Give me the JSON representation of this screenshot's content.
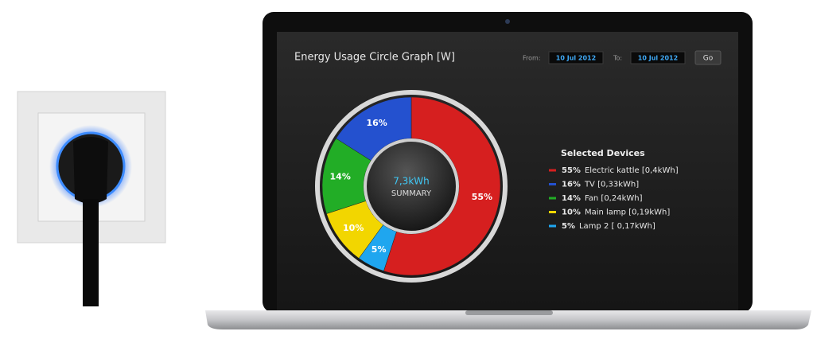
{
  "controls": {
    "from_label": "From:",
    "from_date": "10 Jul 2012",
    "to_label": "To:",
    "to_date": "10 Jul 2012",
    "go": "Go"
  },
  "chart_data": {
    "type": "pie",
    "title": "Energy Usage Circle Graph [W]",
    "center_value": "7,3kWh",
    "center_label": "SUMMARY",
    "legend_title": "Selected Devices",
    "categories": [
      "Electric kattle [0,4kWh]",
      "TV [0,33kWh]",
      "Fan [0,24kWh]",
      "Main lamp [0,19kWh]",
      "Lamp 2 [ 0,17kWh]"
    ],
    "values": [
      55,
      16,
      14,
      10,
      5
    ],
    "value_labels": [
      "55%",
      "16%",
      "14%",
      "10%",
      "5%"
    ],
    "colors": [
      "#d61f1f",
      "#2451cf",
      "#22ad26",
      "#f2d600",
      "#1fa6ef"
    ]
  }
}
